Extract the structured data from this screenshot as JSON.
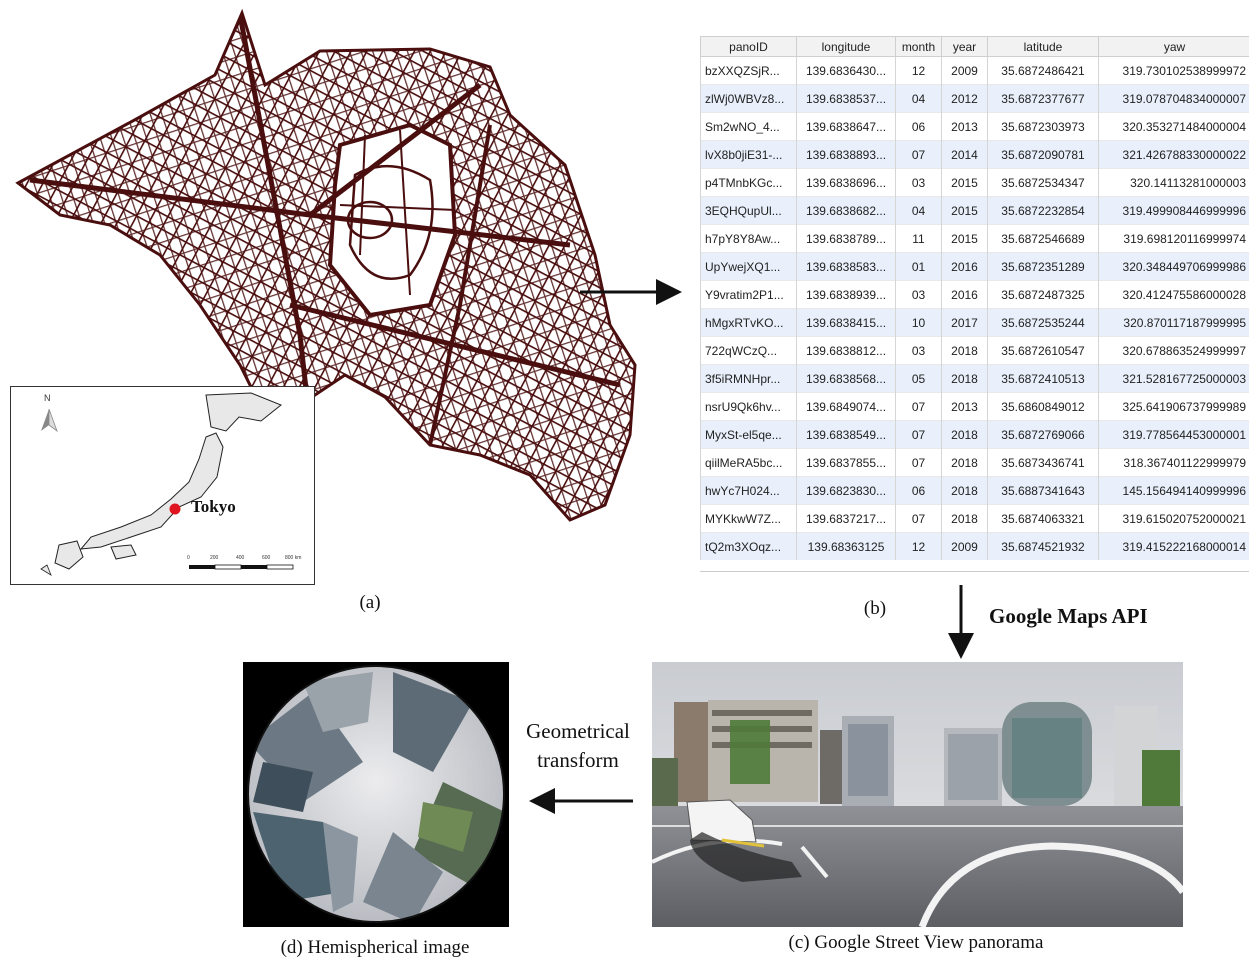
{
  "captions": {
    "a": "(a)",
    "b": "(b)",
    "c": "(c) Google Street View panorama",
    "d": "(d) Hemispherical image"
  },
  "labels": {
    "api": "Google Maps API",
    "transform_line1": "Geometrical",
    "transform_line2": "transform"
  },
  "inset_map": {
    "city": "Tokyo",
    "north": "N",
    "scale_ticks": [
      "0",
      "200",
      "400",
      "600",
      "800 km"
    ]
  },
  "table": {
    "columns": [
      "panoID",
      "longitude",
      "month",
      "year",
      "latitude",
      "yaw"
    ],
    "rows": [
      [
        "bzXXQZSjR...",
        "139.6836430...",
        "12",
        "2009",
        "35.6872486421",
        "319.730102538999972"
      ],
      [
        "zlWj0WBVz8...",
        "139.6838537...",
        "04",
        "2012",
        "35.6872377677",
        "319.078704834000007"
      ],
      [
        "Sm2wNO_4...",
        "139.6838647...",
        "06",
        "2013",
        "35.6872303973",
        "320.353271484000004"
      ],
      [
        "lvX8b0jiE31-...",
        "139.6838893...",
        "07",
        "2014",
        "35.6872090781",
        "321.426788330000022"
      ],
      [
        "p4TMnbKGc...",
        "139.6838696...",
        "03",
        "2015",
        "35.6872534347",
        "320.14113281000003"
      ],
      [
        "3EQHQupUl...",
        "139.6838682...",
        "04",
        "2015",
        "35.6872232854",
        "319.499908446999996"
      ],
      [
        "h7pY8Y8Aw...",
        "139.6838789...",
        "11",
        "2015",
        "35.6872546689",
        "319.698120116999974"
      ],
      [
        "UpYwejXQ1...",
        "139.6838583...",
        "01",
        "2016",
        "35.6872351289",
        "320.348449706999986"
      ],
      [
        "Y9vratim2P1...",
        "139.6838939...",
        "03",
        "2016",
        "35.6872487325",
        "320.412475586000028"
      ],
      [
        "hMgxRTvKO...",
        "139.6838415...",
        "10",
        "2017",
        "35.6872535244",
        "320.870117187999995"
      ],
      [
        "722qWCzQ...",
        "139.6838812...",
        "03",
        "2018",
        "35.6872610547",
        "320.678863524999997"
      ],
      [
        "3f5iRMNHpr...",
        "139.6838568...",
        "05",
        "2018",
        "35.6872410513",
        "321.528167725000003"
      ],
      [
        "nsrU9Qk6hv...",
        "139.6849074...",
        "07",
        "2013",
        "35.6860849012",
        "325.641906737999989"
      ],
      [
        "MyxSt-el5qe...",
        "139.6838549...",
        "07",
        "2018",
        "35.6872769066",
        "319.778564453000001"
      ],
      [
        "qiilMeRA5bc...",
        "139.6837855...",
        "07",
        "2018",
        "35.6873436741",
        "318.367401122999979"
      ],
      [
        "hwYc7H024...",
        "139.6823830...",
        "06",
        "2018",
        "35.6887341643",
        "145.156494140999996"
      ],
      [
        "MYKkwW7Z...",
        "139.6837217...",
        "07",
        "2018",
        "35.6874063321",
        "319.615020752000021"
      ],
      [
        "tQ2m3XOqz...",
        "139.68363125",
        "12",
        "2009",
        "35.6874521932",
        "319.415222168000014"
      ]
    ]
  },
  "colors": {
    "road_network": "#4a0e0e",
    "table_alt_row": "#e9f0fb",
    "tokyo_marker": "#e0141e"
  }
}
